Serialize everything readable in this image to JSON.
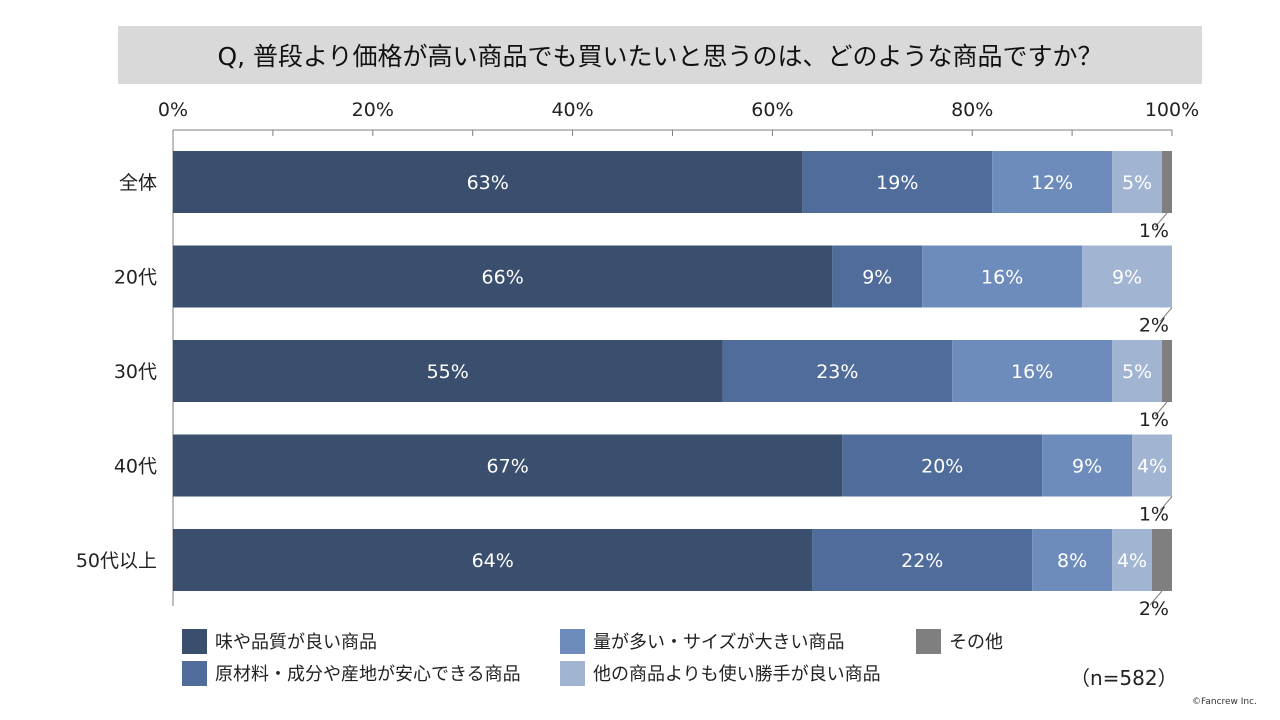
{
  "chart_data": {
    "type": "bar",
    "stacked": true,
    "orientation": "horizontal",
    "title": "Q, 普段より価格が高い商品でも買いたいと思うのは、どのような商品ですか？",
    "categories": [
      "全体",
      "20代",
      "30代",
      "40代",
      "50代以上"
    ],
    "xlim": [
      0,
      100
    ],
    "tick_labels": [
      "0%",
      "20%",
      "40%",
      "60%",
      "80%",
      "100%"
    ],
    "grid": false,
    "legend_position": "bottom",
    "series": [
      {
        "name": "味や品質が良い商品",
        "color": "#3a4f6e",
        "values": [
          63,
          66,
          55,
          67,
          64
        ],
        "labels": [
          "63%",
          "66%",
          "55%",
          "67%",
          "64%"
        ]
      },
      {
        "name": "原材料・成分や産地が安心できる商品",
        "color": "#4f6c9a",
        "values": [
          19,
          9,
          23,
          20,
          22
        ],
        "labels": [
          "19%",
          "9%",
          "23%",
          "20%",
          "22%"
        ]
      },
      {
        "name": "量が多い・サイズが大きい商品",
        "color": "#6d8cbc",
        "values": [
          12,
          16,
          16,
          9,
          8
        ],
        "labels": [
          "12%",
          "16%",
          "16%",
          "9%",
          "8%"
        ]
      },
      {
        "name": "他の商品よりも使い勝手が良い商品",
        "color": "#a1b4d2",
        "values": [
          5,
          9,
          5,
          4,
          4
        ],
        "labels": [
          "5%",
          "9%",
          "5%",
          "4%",
          "4%"
        ]
      },
      {
        "name": "その他",
        "color": "#7f7f7f",
        "values": [
          1,
          2,
          1,
          1,
          2
        ],
        "labels": [
          "1%",
          "2%",
          "1%",
          "1%",
          "2%"
        ]
      }
    ],
    "sample_size": "（n=582）"
  },
  "copyright": "©Fancrew Inc."
}
